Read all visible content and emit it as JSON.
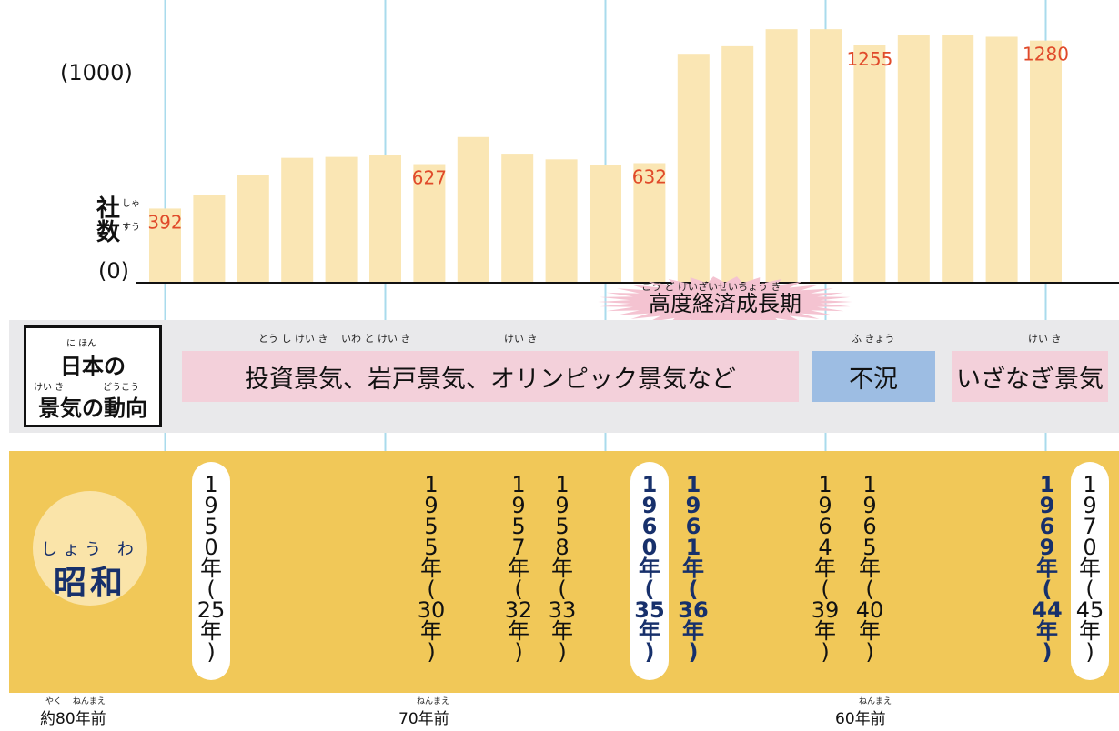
{
  "chart_data": {
    "type": "bar",
    "y_top_label": "(1000)",
    "y_zero_label": "(0)",
    "ylabel": "社数",
    "ylabel_ruby": [
      "しゃ",
      "すう"
    ],
    "ylim": [
      0,
      1360
    ],
    "x": [
      1950,
      1951,
      1952,
      1953,
      1954,
      1955,
      1956,
      1957,
      1958,
      1959,
      1960,
      1961,
      1962,
      1963,
      1964,
      1965,
      1966,
      1967,
      1968,
      1969,
      1970
    ],
    "values": [
      392,
      462,
      568,
      660,
      665,
      673,
      627,
      770,
      682,
      652,
      624,
      632,
      1210,
      1250,
      1340,
      1340,
      1255,
      1310,
      1310,
      1300,
      1280
    ],
    "data_labels": [
      {
        "year": 1950,
        "text": "392"
      },
      {
        "year": 1956,
        "text": "627"
      },
      {
        "year": 1961,
        "text": "632"
      },
      {
        "year": 1966,
        "text": "1255"
      },
      {
        "year": 1970,
        "text": "1280"
      }
    ],
    "bar_color": "#fae6b4",
    "label_color": "#e04a2a",
    "gridline_color": "#a9dbec",
    "guide_years": [
      1950,
      1955,
      1960,
      1965,
      1970
    ],
    "boom_title": "高度経済成長期",
    "boom_title_ruby": "こう ど けいざいせいちょう き",
    "boom_burst_color": "#f4c3d1"
  },
  "economy": {
    "title_line1": "日本の",
    "title_line1_ruby": "に ほん",
    "title_line2": "景気の動向",
    "title_line2_ruby_a": "けい き",
    "title_line2_ruby_b": "どうこう",
    "phases": [
      {
        "text": "投資景気、岩戸景気、オリンピック景気など",
        "ruby": "とう し けい き　 いわ と けい き　　　　　　　　　 けい き",
        "color": "#f3d0da"
      },
      {
        "text": "不況",
        "ruby": "ふ きょう",
        "color": "#9dbde3"
      },
      {
        "text": "いざなぎ景気",
        "ruby": "けい き",
        "color": "#f3d0da"
      }
    ]
  },
  "era": {
    "name": "昭和",
    "ruby": "しょう わ",
    "years": [
      {
        "chars": [
          "1",
          "9",
          "5",
          "0",
          "年",
          "(",
          "25",
          "年",
          ")"
        ],
        "bold": false,
        "pill": true
      },
      {
        "chars": [
          "1",
          "9",
          "5",
          "5",
          "年",
          "(",
          "30",
          "年",
          ")"
        ],
        "bold": false,
        "pill": false
      },
      {
        "chars": [
          "1",
          "9",
          "5",
          "7",
          "年",
          "(",
          "32",
          "年",
          ")"
        ],
        "bold": false,
        "pill": false
      },
      {
        "chars": [
          "1",
          "9",
          "5",
          "8",
          "年",
          "(",
          "33",
          "年",
          ")"
        ],
        "bold": false,
        "pill": false
      },
      {
        "chars": [
          "1",
          "9",
          "6",
          "0",
          "年",
          "(",
          "35",
          "年",
          ")"
        ],
        "bold": true,
        "pill": true
      },
      {
        "chars": [
          "1",
          "9",
          "6",
          "1",
          "年",
          "(",
          "36",
          "年",
          ")"
        ],
        "bold": true,
        "pill": false
      },
      {
        "chars": [
          "1",
          "9",
          "6",
          "4",
          "年",
          "(",
          "39",
          "年",
          ")"
        ],
        "bold": false,
        "pill": false
      },
      {
        "chars": [
          "1",
          "9",
          "6",
          "5",
          "年",
          "(",
          "40",
          "年",
          ")"
        ],
        "bold": false,
        "pill": false
      },
      {
        "chars": [
          "1",
          "9",
          "6",
          "9",
          "年",
          "(",
          "44",
          "年",
          ")"
        ],
        "bold": true,
        "pill": false
      },
      {
        "chars": [
          "1",
          "9",
          "7",
          "0",
          "年",
          "(",
          "45",
          "年",
          ")"
        ],
        "bold": false,
        "pill": true
      }
    ]
  },
  "ago": [
    {
      "text": "約80年前",
      "ruby": "やく　 ねんまえ"
    },
    {
      "text": "70年前",
      "ruby": "ねんまえ"
    },
    {
      "text": "60年前",
      "ruby": "ねんまえ"
    }
  ]
}
